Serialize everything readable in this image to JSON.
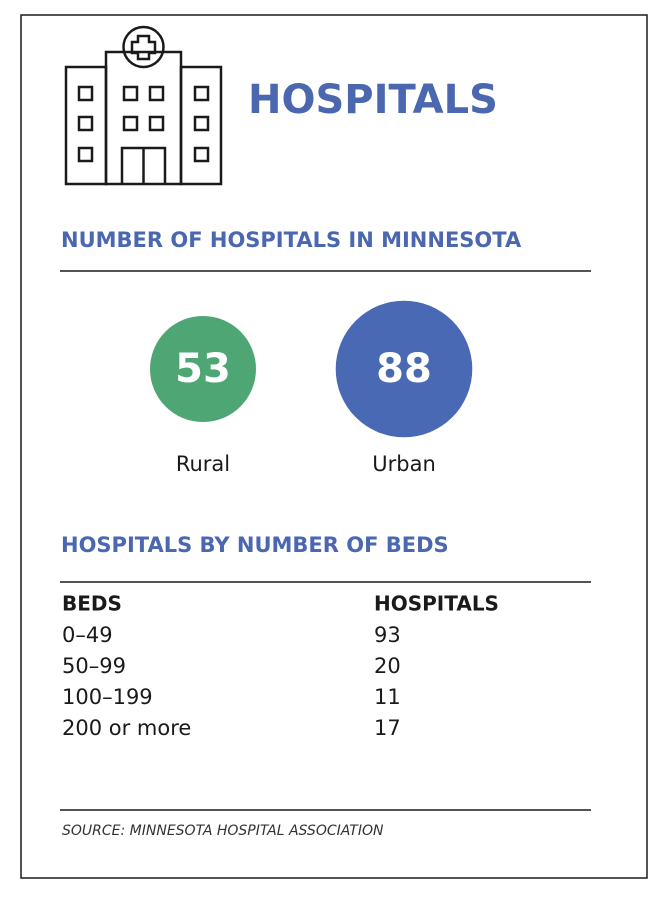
{
  "header": {
    "title": "HOSPITALS"
  },
  "count_section": {
    "title": "NUMBER OF HOSPITALS IN MINNESOTA",
    "items": [
      {
        "label": "Rural",
        "value": 53,
        "color": "#4fa675"
      },
      {
        "label": "Urban",
        "value": 88,
        "color": "#4a69b4"
      }
    ]
  },
  "beds_section": {
    "title": "HOSPITALS BY NUMBER OF BEDS",
    "table": {
      "columns": [
        "BEDS",
        "HOSPITALS"
      ],
      "rows": [
        [
          "0–49",
          93
        ],
        [
          "50–99",
          20
        ],
        [
          "100–199",
          11
        ],
        [
          "200 or more",
          17
        ]
      ]
    }
  },
  "source": "SOURCE: MINNESOTA HOSPITAL ASSOCIATION"
}
